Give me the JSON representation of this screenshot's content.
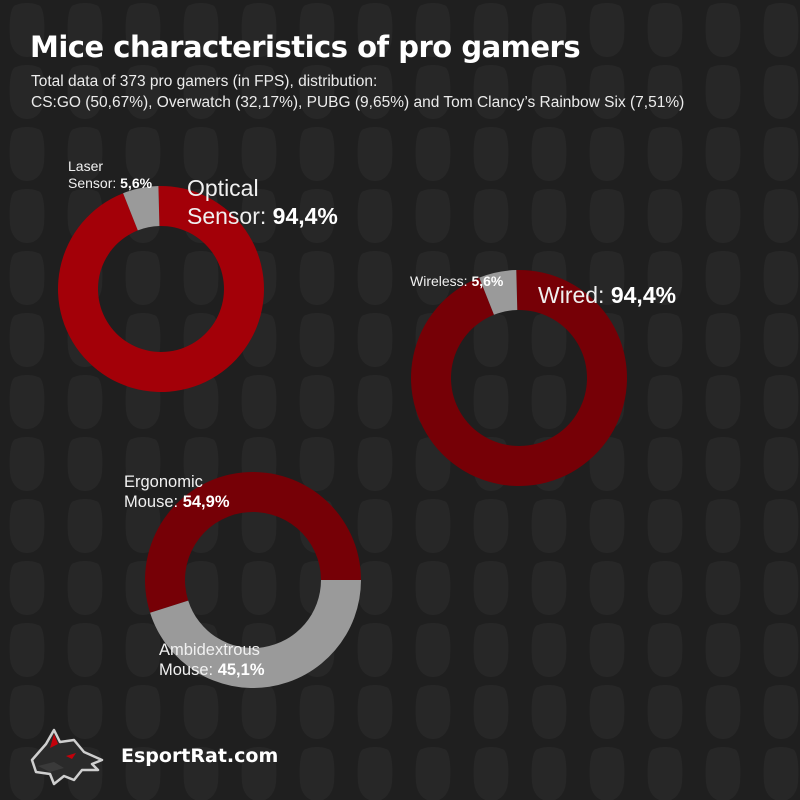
{
  "title": "Mice characteristics of pro gamers",
  "subtitle": {
    "line1": "Total data of 373 pro gamers (in FPS), distribution:",
    "line2": "CS:GO (50,67%), Overwatch (32,17%), PUBG (9,65%) and Tom Clancy’s Rainbow Six (7,51%)"
  },
  "colors": {
    "background": "#1f1f1f",
    "red_bright": "#a30008",
    "red_dark": "#760006",
    "gray": "#9a9a9a"
  },
  "chart_data": [
    {
      "type": "pie",
      "variant": "donut",
      "slices": [
        {
          "label": "Optical Sensor",
          "value": 94.4,
          "value_text": "94,4%",
          "color": "#a30008"
        },
        {
          "label": "Laser Sensor",
          "value": 5.6,
          "value_text": "5,6%",
          "color": "#9a9a9a"
        }
      ],
      "labels": {
        "major_line1": "Optical",
        "major_line2": "Sensor:",
        "minor_line1": "Laser",
        "minor_line2": "Sensor:"
      }
    },
    {
      "type": "pie",
      "variant": "donut",
      "slices": [
        {
          "label": "Wired",
          "value": 94.4,
          "value_text": "94,4%",
          "color": "#760006"
        },
        {
          "label": "Wireless",
          "value": 5.6,
          "value_text": "5,6%",
          "color": "#9a9a9a"
        }
      ],
      "labels": {
        "major_line1": "Wired:",
        "minor_line1": "Wireless:"
      }
    },
    {
      "type": "pie",
      "variant": "donut",
      "slices": [
        {
          "label": "Ergonomic Mouse",
          "value": 54.9,
          "value_text": "54,9%",
          "color": "#760006"
        },
        {
          "label": "Ambidextrous Mouse",
          "value": 45.1,
          "value_text": "45,1%",
          "color": "#9a9a9a"
        }
      ],
      "labels": {
        "major_line1": "Ergonomic",
        "major_line2": "Mouse:",
        "minor_line1": "Ambidextrous",
        "minor_line2": "Mouse:"
      }
    }
  ],
  "footer": {
    "site": "EsportRat.com",
    "logo_icon": "wolf-head-icon"
  }
}
